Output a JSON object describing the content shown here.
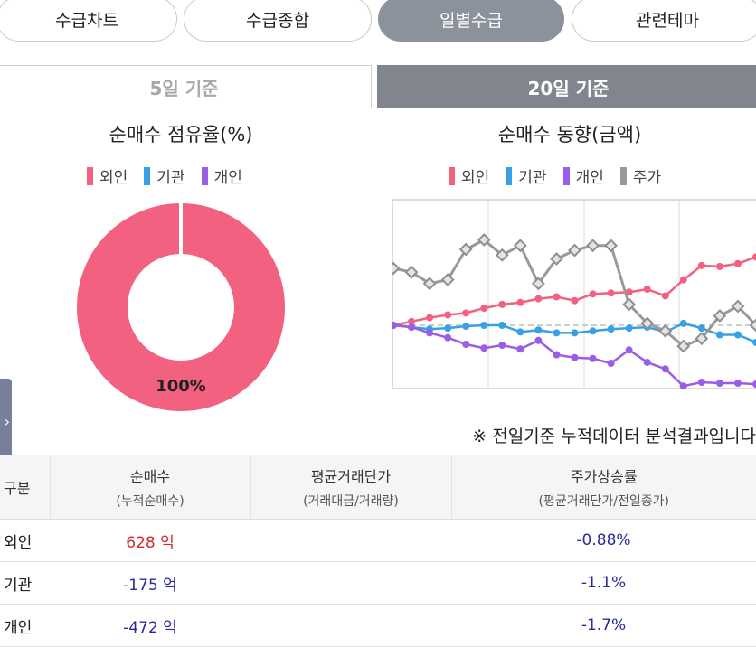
{
  "tabs": [
    "수급차트",
    "수급종합",
    "일별수급",
    "관련테마"
  ],
  "period": {
    "off": "5일 기준",
    "on": "20일 기준"
  },
  "donut": {
    "title": "순매수 점유율(%)",
    "legend": [
      {
        "label": "외인",
        "color": "#f2617f"
      },
      {
        "label": "기관",
        "color": "#3aa0e6"
      },
      {
        "label": "개인",
        "color": "#9b5de5"
      }
    ],
    "label": "100%"
  },
  "trend": {
    "title": "순매수 동향(금액)",
    "legend": [
      {
        "label": "외인",
        "color": "#f2617f"
      },
      {
        "label": "기관",
        "color": "#3aa0e6"
      },
      {
        "label": "개인",
        "color": "#9b5de5"
      },
      {
        "label": "주가",
        "color": "#999999"
      }
    ]
  },
  "chart_data": [
    {
      "type": "pie",
      "title": "순매수 점유율(%)",
      "labels": [
        "외인",
        "기관",
        "개인"
      ],
      "values": [
        100,
        0,
        0
      ],
      "colors": [
        "#f2617f",
        "#3aa0e6",
        "#9b5de5"
      ]
    },
    {
      "type": "line",
      "title": "순매수 동향(금액)",
      "x": [
        1,
        2,
        3,
        4,
        5,
        6,
        7,
        8,
        9,
        10,
        11,
        12,
        13,
        14,
        15,
        16,
        17,
        18,
        19,
        20,
        21
      ],
      "ylim": [
        -1,
        1
      ],
      "series": [
        {
          "name": "외인",
          "color": "#f2617f",
          "values": [
            0.0,
            0.04,
            0.08,
            0.11,
            0.13,
            0.18,
            0.22,
            0.24,
            0.28,
            0.3,
            0.26,
            0.33,
            0.34,
            0.35,
            0.38,
            0.31,
            0.48,
            0.63,
            0.62,
            0.65,
            0.72
          ]
        },
        {
          "name": "기관",
          "color": "#3aa0e6",
          "values": [
            0.0,
            -0.02,
            -0.04,
            -0.03,
            -0.01,
            0.0,
            0.0,
            -0.07,
            -0.05,
            -0.08,
            -0.08,
            -0.06,
            -0.04,
            -0.03,
            -0.02,
            -0.07,
            0.02,
            -0.03,
            -0.1,
            -0.1,
            -0.18
          ]
        },
        {
          "name": "개인",
          "color": "#9b5de5",
          "values": [
            0.0,
            -0.02,
            -0.08,
            -0.13,
            -0.2,
            -0.24,
            -0.21,
            -0.25,
            -0.16,
            -0.31,
            -0.34,
            -0.35,
            -0.4,
            -0.26,
            -0.39,
            -0.46,
            -0.64,
            -0.6,
            -0.61,
            -0.61,
            -0.62
          ]
        },
        {
          "name": "주가",
          "color": "#999999",
          "values": [
            0.6,
            0.56,
            0.44,
            0.48,
            0.8,
            0.9,
            0.74,
            0.84,
            0.44,
            0.7,
            0.79,
            0.84,
            0.84,
            0.22,
            0.02,
            -0.06,
            -0.22,
            -0.14,
            0.1,
            0.2,
            0.0
          ]
        }
      ]
    }
  ],
  "note": "※ 전일기준 누적데이터 분석결과입니다",
  "table": {
    "headers": [
      {
        "main": "구분",
        "sub": ""
      },
      {
        "main": "순매수",
        "sub": "(누적순매수)"
      },
      {
        "main": "평균거래단가",
        "sub": "(거래대금/거래량)"
      },
      {
        "main": "주가상승률",
        "sub": "(평균거래단가/전일종가)"
      }
    ],
    "rows": [
      {
        "name": "외인",
        "net": "628 억",
        "avg": "",
        "rate": "-0.88%"
      },
      {
        "name": "기관",
        "net": "-175 억",
        "avg": "",
        "rate": "-1.1%"
      },
      {
        "name": "개인",
        "net": "-472 억",
        "avg": "",
        "rate": "-1.7%"
      }
    ]
  }
}
